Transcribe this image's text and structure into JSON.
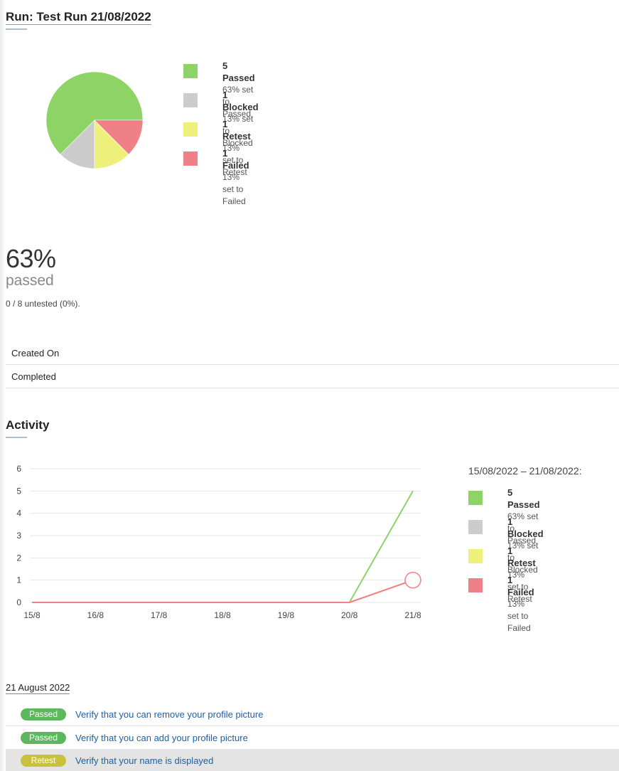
{
  "run": {
    "title": "Run: Test Run 21/08/2022"
  },
  "colors": {
    "passed": "#8dd366",
    "blocked": "#cccccc",
    "retest": "#eef07c",
    "failed": "#ef8087",
    "passed_badge": "#5cb85c",
    "retest_badge": "#c8c23a"
  },
  "legend": [
    {
      "title": "5 Passed",
      "sub": "63% set to Passed",
      "color": "#8dd366"
    },
    {
      "title": "1 Blocked",
      "sub": "13% set to Blocked",
      "color": "#cccccc"
    },
    {
      "title": "1 Retest",
      "sub": "13% set to Retest",
      "color": "#eef07c"
    },
    {
      "title": "1 Failed",
      "sub": "13% set to Failed",
      "color": "#ef8087"
    }
  ],
  "summary": {
    "percent": "63%",
    "label": "passed",
    "untested": "0 / 8 untested (0%)."
  },
  "info": {
    "created_on": "Created On",
    "completed": "Completed"
  },
  "activity": {
    "title": "Activity",
    "range": "15/08/2022 – 21/08/2022:"
  },
  "chart_data": [
    {
      "type": "pie",
      "categories": [
        "Passed",
        "Blocked",
        "Retest",
        "Failed"
      ],
      "values": [
        5,
        1,
        1,
        1
      ],
      "colors": [
        "#8dd366",
        "#cccccc",
        "#eef07c",
        "#ef8087"
      ]
    },
    {
      "type": "line",
      "categories": [
        "15/8",
        "16/8",
        "17/8",
        "18/8",
        "19/8",
        "20/8",
        "21/8"
      ],
      "yticks": [
        "0",
        "1",
        "2",
        "3",
        "4",
        "5",
        "6"
      ],
      "ylim": [
        0,
        6
      ],
      "grid": true,
      "series": [
        {
          "name": "Passed",
          "color": "#8dd366",
          "values": [
            0,
            0,
            0,
            0,
            0,
            0,
            5
          ]
        },
        {
          "name": "Blocked",
          "color": "#cccccc",
          "values": [
            0,
            0,
            0,
            0,
            0,
            0,
            1
          ]
        },
        {
          "name": "Retest",
          "color": "#eef07c",
          "values": [
            0,
            0,
            0,
            0,
            0,
            0,
            1
          ]
        },
        {
          "name": "Failed",
          "color": "#ef8087",
          "values": [
            0,
            0,
            0,
            0,
            0,
            0,
            1
          ]
        }
      ],
      "highlight": {
        "series": "Failed",
        "category": "21/8",
        "value": 1
      }
    }
  ],
  "results": {
    "date": "21 August 2022",
    "rows": [
      {
        "status": "Passed",
        "color": "#5cb85c",
        "title": "Verify that you can remove your profile picture"
      },
      {
        "status": "Passed",
        "color": "#5cb85c",
        "title": "Verify that you can add your profile picture"
      },
      {
        "status": "Retest",
        "color": "#c8c23a",
        "title": "Verify that your name is displayed"
      }
    ]
  }
}
